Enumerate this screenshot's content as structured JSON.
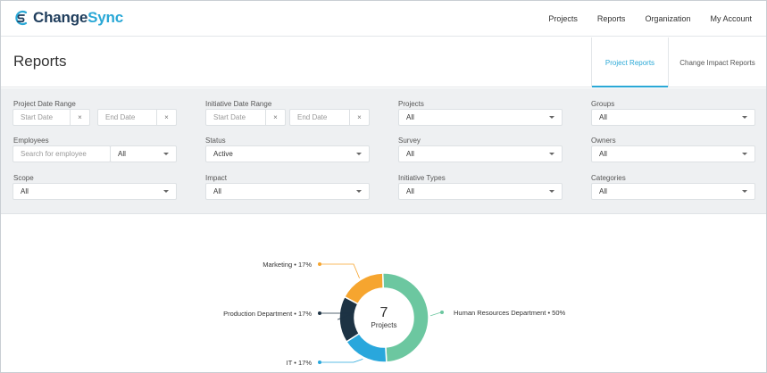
{
  "brand": {
    "name_dark": "Change",
    "name_accent": "Sync"
  },
  "nav": {
    "items": [
      "Projects",
      "Reports",
      "Organization",
      "My Account"
    ]
  },
  "page": {
    "title": "Reports"
  },
  "tabs": {
    "project_reports": "Project Reports",
    "change_impact_reports": "Change Impact Reports"
  },
  "filters": {
    "project_date_range": {
      "label": "Project Date Range",
      "start_placeholder": "Start Date",
      "end_placeholder": "End Date"
    },
    "initiative_date_range": {
      "label": "Initiative Date Range",
      "start_placeholder": "Start Date",
      "end_placeholder": "End Date"
    },
    "projects": {
      "label": "Projects",
      "value": "All"
    },
    "groups": {
      "label": "Groups",
      "value": "All"
    },
    "employees": {
      "label": "Employees",
      "placeholder": "Search for employee",
      "value": "All"
    },
    "status": {
      "label": "Status",
      "value": "Active"
    },
    "survey": {
      "label": "Survey",
      "value": "All"
    },
    "owners": {
      "label": "Owners",
      "value": "All"
    },
    "scope": {
      "label": "Scope",
      "value": "All"
    },
    "impact": {
      "label": "Impact",
      "value": "All"
    },
    "initiative_types": {
      "label": "Initiative Types",
      "value": "All"
    },
    "categories": {
      "label": "Categories",
      "value": "All"
    },
    "clear_glyph": "×"
  },
  "colors": {
    "accent": "#2aa8d6",
    "brand_dark": "#1f3d5c"
  },
  "chart_data": {
    "type": "pie",
    "center_value": "7",
    "center_label": "Projects",
    "slices": [
      {
        "name": "Human Resources Department",
        "percent": 50,
        "label": "Human Resources Department • 50%",
        "color": "#6cc7a0"
      },
      {
        "name": "IT",
        "percent": 17,
        "label": "IT • 17%",
        "color": "#29a7dc"
      },
      {
        "name": "Production Department",
        "percent": 17,
        "label": "Production Department • 17%",
        "color": "#1d3344"
      },
      {
        "name": "Marketing",
        "percent": 17,
        "label": "Marketing • 17%",
        "color": "#f6a52f"
      }
    ]
  }
}
